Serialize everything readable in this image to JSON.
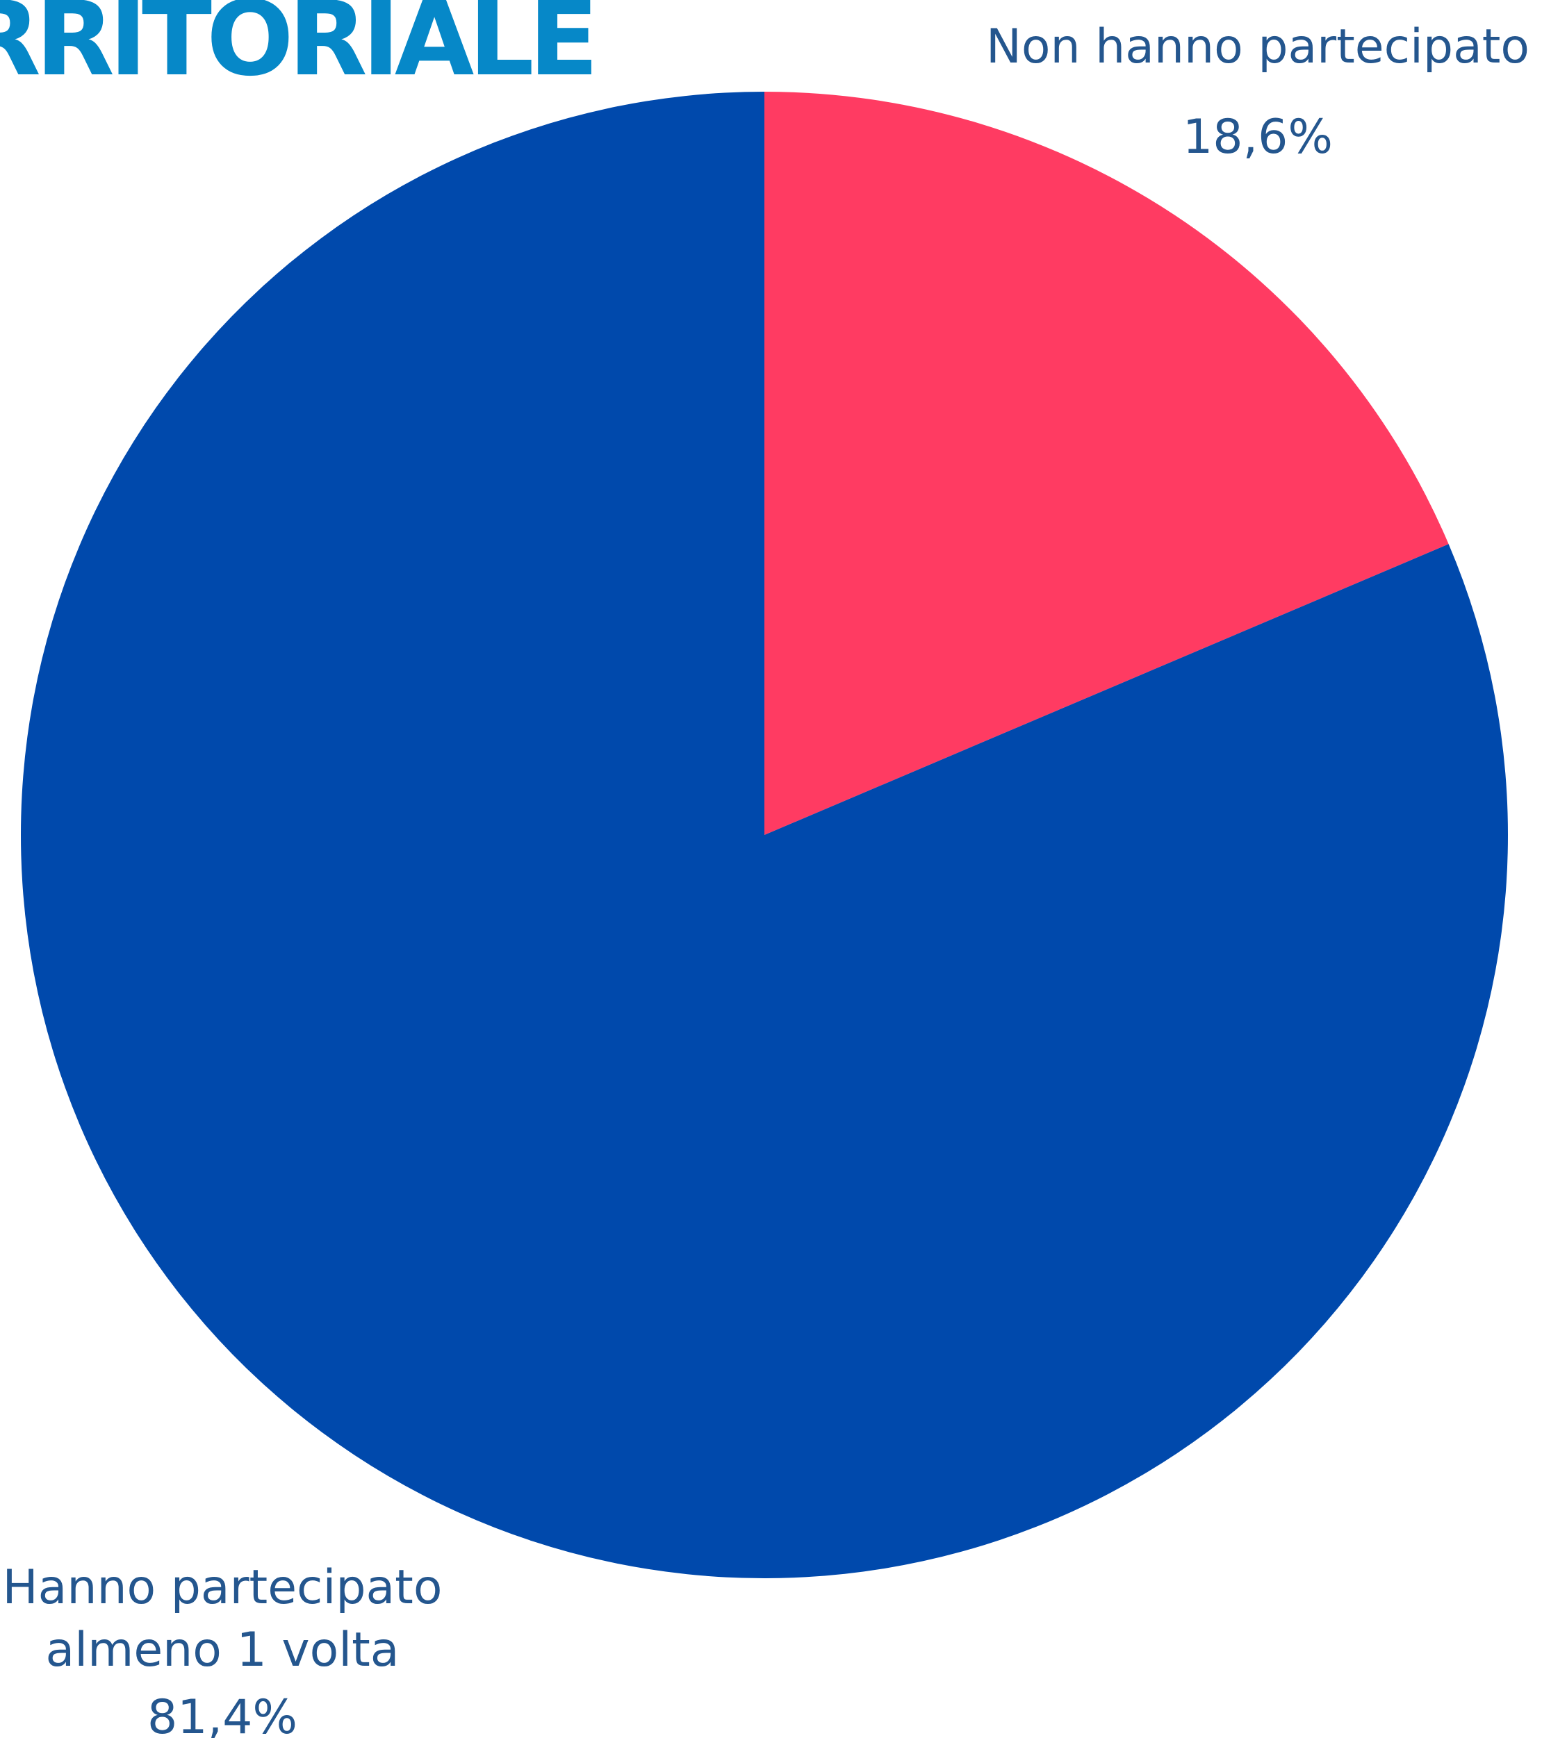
{
  "header": {
    "title_visible": "RRITORIALE"
  },
  "chart_data": {
    "type": "pie",
    "title": "",
    "start_angle_deg": 0,
    "direction": "clockwise",
    "slices": [
      {
        "name": "Non hanno partecipato",
        "label_lines": [
          "Non hanno partecipato"
        ],
        "value": 18.6,
        "value_label": "18,6%",
        "color": "#ff3b62"
      },
      {
        "name": "Hanno partecipato almeno 1 volta",
        "label_lines": [
          "Hanno partecipato",
          "almeno 1 volta"
        ],
        "value": 81.4,
        "value_label": "81,4%",
        "color": "#0049ac"
      }
    ],
    "label_color": "#24568e"
  }
}
